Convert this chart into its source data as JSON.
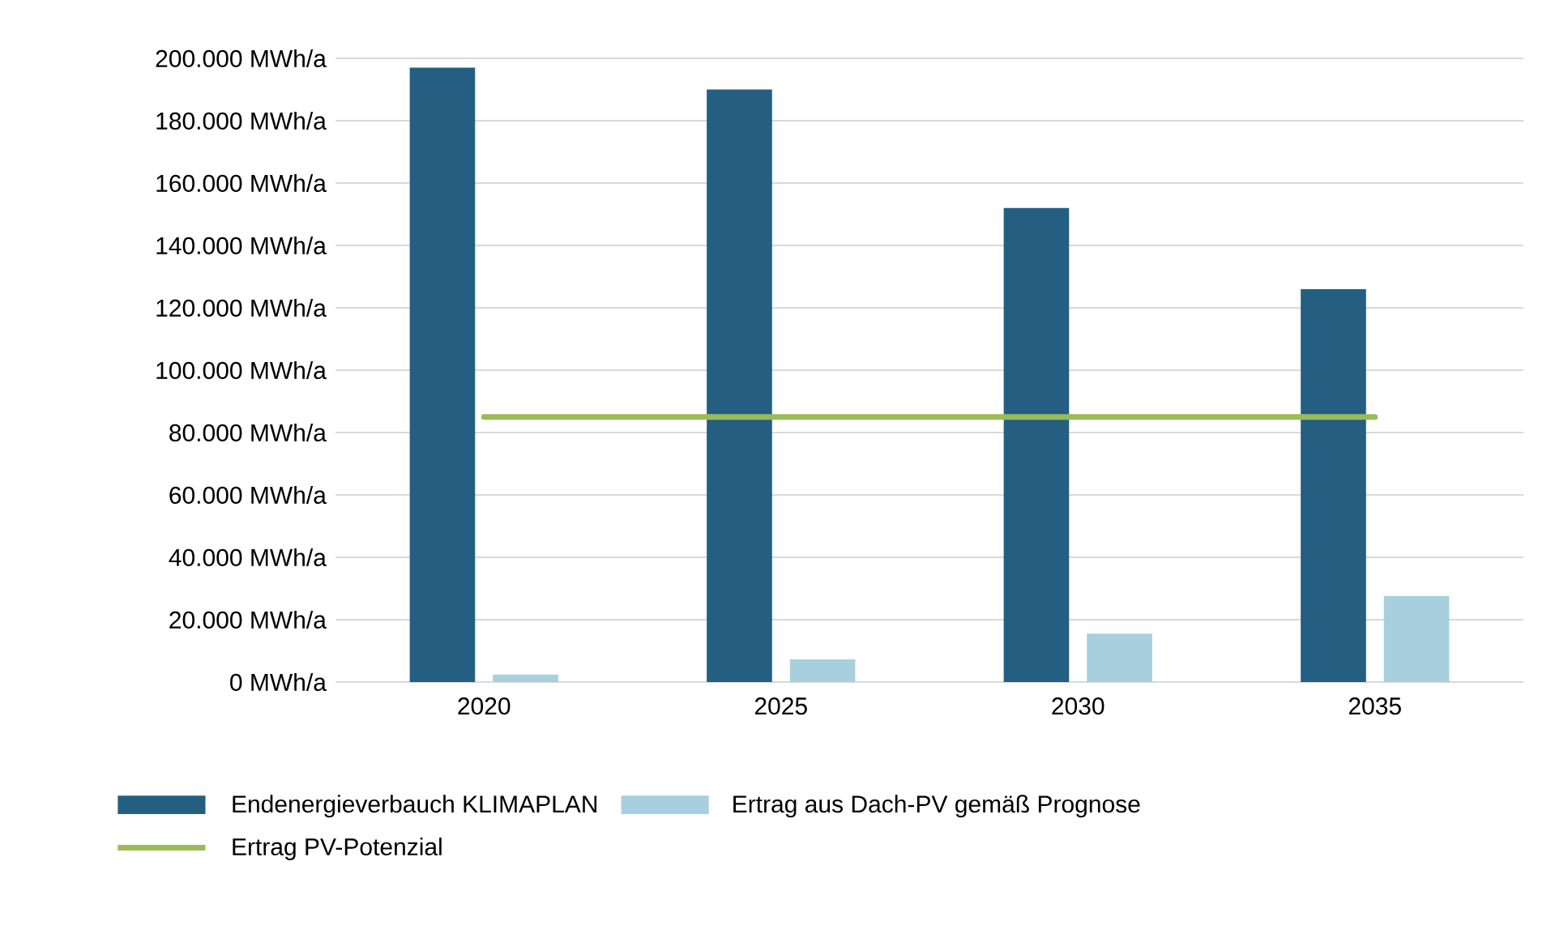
{
  "chart_data": {
    "type": "bar",
    "categories": [
      "2020",
      "2025",
      "2030",
      "2035"
    ],
    "series": [
      {
        "name": "Endenergieverbauch KLIMAPLAN",
        "color": "#245f82",
        "values": [
          197000,
          190000,
          152000,
          126000
        ]
      },
      {
        "name": "Ertrag aus Dach-PV gemäß Prognose",
        "color": "#a8cfdd",
        "values": [
          2400,
          7300,
          15500,
          27600
        ]
      },
      {
        "name": "Ertrag PV-Potenzial",
        "type": "line",
        "color": "#9bbb59",
        "values": [
          85000,
          85000,
          85000,
          85000
        ]
      }
    ],
    "ylim": [
      0,
      200000
    ],
    "yticks": [
      {
        "value": 0,
        "label": "0 MWh/a"
      },
      {
        "value": 20000,
        "label": "20.000 MWh/a"
      },
      {
        "value": 40000,
        "label": "40.000 MWh/a"
      },
      {
        "value": 60000,
        "label": "60.000 MWh/a"
      },
      {
        "value": 80000,
        "label": "80.000 MWh/a"
      },
      {
        "value": 100000,
        "label": "100.000 MWh/a"
      },
      {
        "value": 120000,
        "label": "120.000 MWh/a"
      },
      {
        "value": 140000,
        "label": "140.000 MWh/a"
      },
      {
        "value": 160000,
        "label": "160.000 MWh/a"
      },
      {
        "value": 180000,
        "label": "180.000 MWh/a"
      },
      {
        "value": 200000,
        "label": "200.000 MWh/a"
      }
    ],
    "grid": "y",
    "legend": "bottom"
  }
}
